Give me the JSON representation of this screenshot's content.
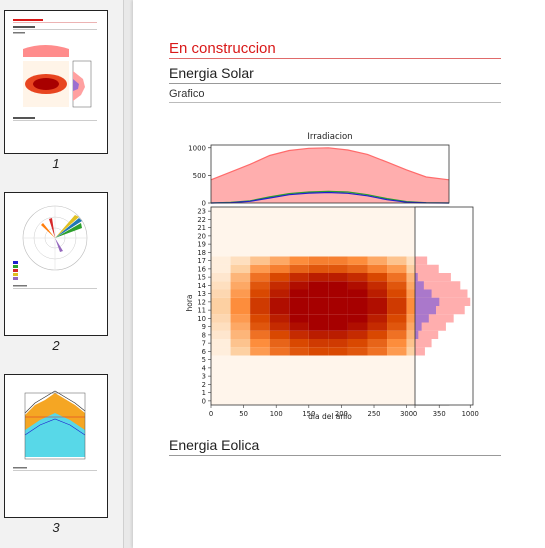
{
  "thumbnails": [
    {
      "number": "1"
    },
    {
      "number": "2"
    },
    {
      "number": "3"
    }
  ],
  "page": {
    "heading_construction": "En construccion",
    "heading_solar": "Energia Solar",
    "subheading_graph": "Grafico",
    "heading_wind": "Energia Eolica"
  },
  "colors": {
    "construction_red": "#d91818",
    "series_red": "#ff6b6b",
    "series_green": "#2ca02c",
    "series_blue": "#1f1fd0",
    "hist_red": "#ffa0a0",
    "hist_purple": "#9b6fd0"
  },
  "chart_data": [
    {
      "type": "area",
      "title": "Irradiacion",
      "xlabel": "",
      "ylabel": "",
      "xlim": [
        0,
        365
      ],
      "ylim": [
        0,
        1050
      ],
      "yticks": [
        "0",
        "500",
        "1000"
      ],
      "series": [
        {
          "color": "#ff6b6b",
          "x": [
            0,
            30,
            60,
            90,
            120,
            150,
            180,
            210,
            240,
            270,
            300,
            330,
            365
          ],
          "values": [
            420,
            560,
            700,
            860,
            950,
            990,
            1000,
            960,
            880,
            740,
            600,
            470,
            420
          ]
        },
        {
          "color": "#2ca02c",
          "x": [
            0,
            30,
            60,
            90,
            120,
            150,
            180,
            210,
            240,
            270,
            300,
            330,
            365
          ],
          "values": [
            0,
            10,
            40,
            110,
            170,
            200,
            210,
            200,
            150,
            80,
            25,
            5,
            0
          ]
        },
        {
          "color": "#1f1fd0",
          "x": [
            0,
            30,
            60,
            90,
            120,
            150,
            180,
            210,
            240,
            270,
            300,
            330,
            365
          ],
          "values": [
            0,
            5,
            30,
            90,
            150,
            180,
            190,
            175,
            130,
            60,
            15,
            2,
            0
          ]
        }
      ]
    },
    {
      "type": "heatmap",
      "xlabel": "dia del anio",
      "ylabel": "hora",
      "xlim": [
        0,
        365
      ],
      "ylim": [
        0,
        24
      ],
      "xticks": [
        0,
        50,
        100,
        150,
        200,
        250,
        300,
        350
      ],
      "yticks": [
        0,
        1,
        2,
        3,
        4,
        5,
        6,
        7,
        8,
        9,
        10,
        11,
        12,
        13,
        14,
        15,
        16,
        17,
        18,
        19,
        20,
        21,
        22,
        23
      ],
      "day_bins": [
        15,
        45,
        75,
        105,
        135,
        165,
        195,
        225,
        255,
        285,
        315,
        345
      ],
      "hours": [
        6,
        7,
        8,
        9,
        10,
        11,
        12,
        13,
        14,
        15,
        16,
        17
      ],
      "values": [
        [
          0.05,
          0.25,
          0.45,
          0.6,
          0.7,
          0.75,
          0.75,
          0.7,
          0.6,
          0.45,
          0.25,
          0.05
        ],
        [
          0.05,
          0.3,
          0.5,
          0.65,
          0.75,
          0.8,
          0.8,
          0.75,
          0.65,
          0.5,
          0.3,
          0.05
        ],
        [
          0.1,
          0.35,
          0.6,
          0.75,
          0.85,
          0.9,
          0.9,
          0.85,
          0.75,
          0.6,
          0.35,
          0.1
        ],
        [
          0.15,
          0.4,
          0.7,
          0.85,
          0.95,
          1.0,
          1.0,
          0.95,
          0.85,
          0.7,
          0.4,
          0.15
        ],
        [
          0.2,
          0.45,
          0.75,
          0.9,
          1.0,
          1.0,
          1.0,
          1.0,
          0.9,
          0.75,
          0.45,
          0.2
        ],
        [
          0.25,
          0.5,
          0.8,
          0.95,
          1.0,
          1.0,
          1.0,
          1.0,
          0.95,
          0.8,
          0.5,
          0.25
        ],
        [
          0.25,
          0.5,
          0.8,
          0.95,
          1.0,
          1.0,
          1.0,
          1.0,
          0.95,
          0.8,
          0.5,
          0.25
        ],
        [
          0.2,
          0.45,
          0.75,
          0.9,
          1.0,
          1.0,
          1.0,
          1.0,
          0.9,
          0.75,
          0.45,
          0.2
        ],
        [
          0.15,
          0.4,
          0.7,
          0.85,
          0.95,
          1.0,
          1.0,
          0.95,
          0.85,
          0.7,
          0.4,
          0.15
        ],
        [
          0.1,
          0.35,
          0.6,
          0.75,
          0.85,
          0.9,
          0.9,
          0.85,
          0.75,
          0.6,
          0.35,
          0.1
        ],
        [
          0.05,
          0.25,
          0.45,
          0.55,
          0.65,
          0.7,
          0.7,
          0.65,
          0.55,
          0.45,
          0.25,
          0.05
        ],
        [
          0.05,
          0.15,
          0.3,
          0.4,
          0.5,
          0.55,
          0.55,
          0.5,
          0.4,
          0.3,
          0.15,
          0.05
        ]
      ]
    },
    {
      "type": "bar",
      "orientation": "horizontal",
      "xlabel": "",
      "ylabel": "",
      "xlim": [
        0,
        1050
      ],
      "xticks": [
        0,
        1000
      ],
      "series": [
        {
          "color": "#ffa0a0",
          "hours": [
            6,
            7,
            8,
            9,
            10,
            11,
            12,
            13,
            14,
            15,
            16,
            17
          ],
          "values": [
            180,
            300,
            420,
            560,
            700,
            900,
            1000,
            950,
            820,
            650,
            430,
            220
          ]
        },
        {
          "color": "#9b6fd0",
          "hours": [
            8,
            9,
            10,
            11,
            12,
            13,
            14,
            15
          ],
          "values": [
            60,
            120,
            250,
            380,
            440,
            300,
            160,
            50
          ]
        }
      ]
    }
  ]
}
